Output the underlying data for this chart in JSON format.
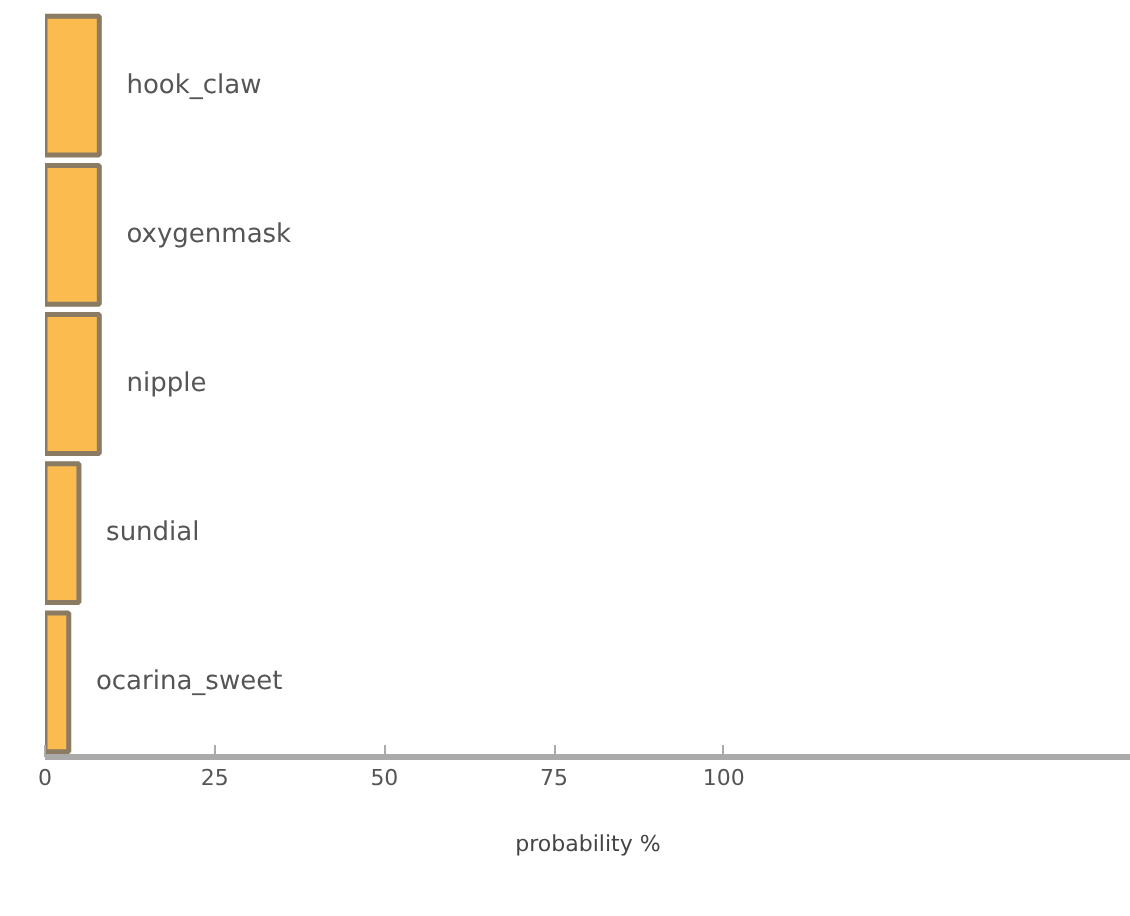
{
  "chart_data": {
    "type": "bar",
    "orientation": "horizontal",
    "xlabel": "probability %",
    "categories": [
      "hook_claw",
      "oxygenmask",
      "nipple",
      "sundial",
      "ocarina_sweet"
    ],
    "values": [
      8,
      8,
      8,
      5,
      3.5
    ],
    "color": "#fbbb4f",
    "xlim": [
      0,
      160
    ],
    "xticks": [
      0,
      25,
      50,
      75,
      100
    ],
    "tick_labels": "x",
    "grid": false
  }
}
